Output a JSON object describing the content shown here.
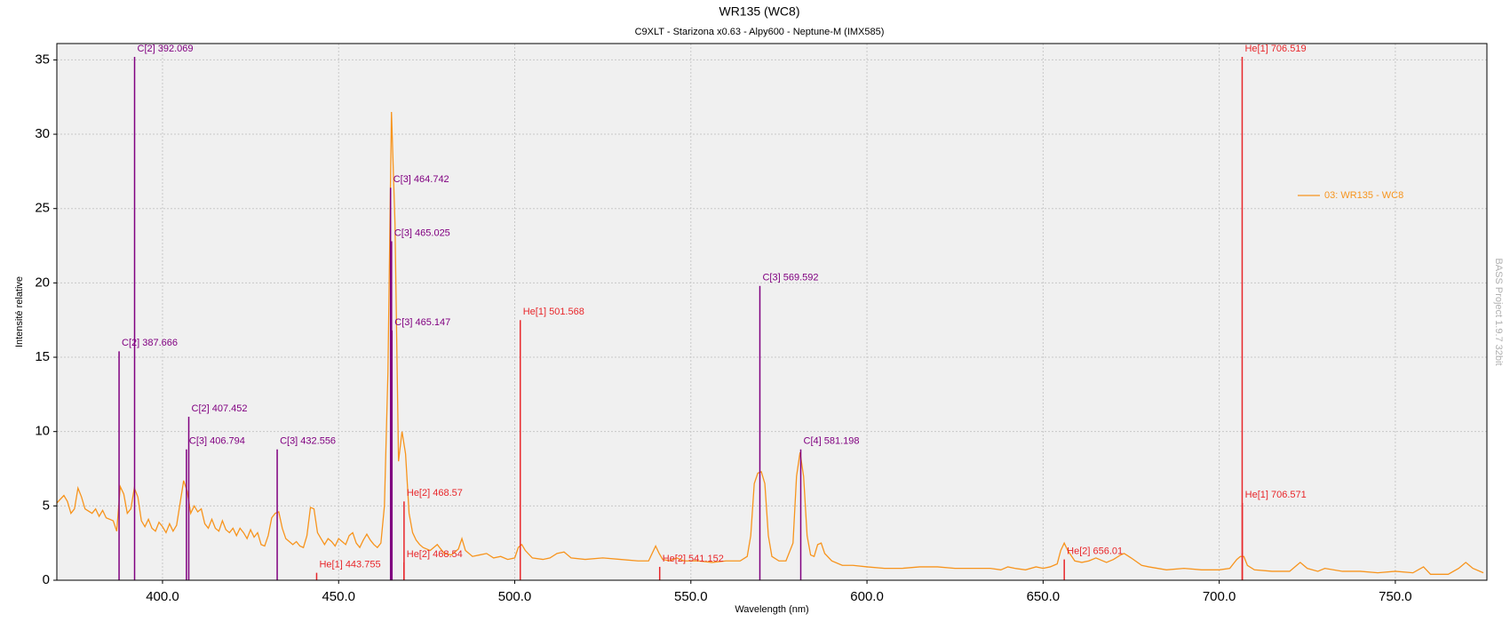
{
  "chart_data": {
    "type": "line",
    "title": "WR135 (WC8)",
    "subtitle": "C9XLT - Starizona x0.63 - Alpy600 - Neptune-M (IMX585)",
    "x_label": "Wavelength (nm)",
    "y_label": "Intensité relative",
    "watermark": "BASS Project 1.9.7  32bit",
    "xlim": [
      370,
      776
    ],
    "ylim": [
      0,
      36.1
    ],
    "xticks": [
      {
        "value": 400,
        "label": "400.0"
      },
      {
        "value": 450,
        "label": "450.0"
      },
      {
        "value": 500,
        "label": "500.0"
      },
      {
        "value": 550,
        "label": "550.0"
      },
      {
        "value": 600,
        "label": "600.0"
      },
      {
        "value": 650,
        "label": "650.0"
      },
      {
        "value": 700,
        "label": "700.0"
      },
      {
        "value": 750,
        "label": "750.0"
      }
    ],
    "yticks": [
      0,
      5,
      10,
      15,
      20,
      25,
      30,
      35
    ],
    "grid": true,
    "legend": "right",
    "series": [
      {
        "name": "03: WR135 - WC8",
        "color": "#f7941d",
        "x": [
          370,
          372,
          373,
          374,
          375,
          376,
          377,
          378,
          380,
          381,
          382,
          383,
          384,
          386,
          387,
          388,
          389,
          390,
          391,
          392,
          393,
          394,
          395,
          396,
          397,
          398,
          399,
          400,
          401,
          402,
          403,
          404,
          405,
          406,
          407,
          408,
          409,
          410,
          411,
          412,
          413,
          414,
          415,
          416,
          417,
          418,
          419,
          420,
          421,
          422,
          423,
          424,
          425,
          426,
          427,
          428,
          429,
          430,
          431,
          432,
          433,
          434,
          435,
          436,
          437,
          438,
          439,
          440,
          441,
          442,
          443,
          444,
          445,
          446,
          447,
          448,
          449,
          450,
          451,
          452,
          453,
          454,
          455,
          456,
          457,
          458,
          459,
          460,
          461,
          462,
          463,
          464,
          465,
          466,
          467,
          468,
          469,
          470,
          471,
          472,
          473,
          474,
          476,
          478,
          480,
          482,
          484,
          485,
          486,
          488,
          490,
          492,
          494,
          496,
          498,
          500,
          501,
          502,
          503,
          505,
          508,
          510,
          512,
          514,
          516,
          520,
          525,
          530,
          535,
          538,
          540,
          541,
          542,
          544,
          546,
          548,
          552,
          556,
          560,
          564,
          566,
          567,
          568,
          569,
          570,
          571,
          572,
          573,
          575,
          577,
          579,
          580,
          581,
          582,
          583,
          584,
          585,
          586,
          587,
          588,
          590,
          593,
          596,
          600,
          605,
          610,
          615,
          620,
          625,
          630,
          635,
          638,
          640,
          642,
          645,
          648,
          650,
          652,
          654,
          655,
          656,
          657,
          659,
          661,
          663,
          665,
          668,
          670,
          672,
          673,
          675,
          678,
          680,
          685,
          690,
          695,
          700,
          703,
          705,
          706,
          707,
          708,
          710,
          715,
          720,
          723,
          725,
          728,
          730,
          735,
          740,
          745,
          750,
          755,
          758,
          760,
          765,
          768,
          770,
          772,
          775
        ],
        "values": [
          5.2,
          5.7,
          5.3,
          4.5,
          4.8,
          6.2,
          5.6,
          4.8,
          4.5,
          4.8,
          4.3,
          4.7,
          4.2,
          4.0,
          3.3,
          6.3,
          5.8,
          4.5,
          4.8,
          6.2,
          5.6,
          4.0,
          3.6,
          4.1,
          3.5,
          3.3,
          3.9,
          3.6,
          3.2,
          3.8,
          3.3,
          3.7,
          5.2,
          6.7,
          6.0,
          4.5,
          5.0,
          4.6,
          4.8,
          3.8,
          3.5,
          4.1,
          3.5,
          3.3,
          4.0,
          3.4,
          3.2,
          3.5,
          3.0,
          3.5,
          3.2,
          2.8,
          3.4,
          2.9,
          3.2,
          2.4,
          2.3,
          3.0,
          4.2,
          4.5,
          4.6,
          3.5,
          2.8,
          2.6,
          2.4,
          2.6,
          2.3,
          2.2,
          3.0,
          4.9,
          4.8,
          3.2,
          2.8,
          2.4,
          2.8,
          2.6,
          2.3,
          2.8,
          2.6,
          2.4,
          3.0,
          3.2,
          2.5,
          2.2,
          2.7,
          3.1,
          2.7,
          2.4,
          2.2,
          2.5,
          5.0,
          14.0,
          31.5,
          24.0,
          8.0,
          10.0,
          8.5,
          4.5,
          3.2,
          2.7,
          2.4,
          2.2,
          2.0,
          2.4,
          1.8,
          1.7,
          2.1,
          2.8,
          2.0,
          1.6,
          1.7,
          1.8,
          1.5,
          1.6,
          1.4,
          1.5,
          2.2,
          2.4,
          2.0,
          1.5,
          1.4,
          1.5,
          1.8,
          1.9,
          1.5,
          1.4,
          1.5,
          1.4,
          1.3,
          1.3,
          2.3,
          1.8,
          1.4,
          1.3,
          1.5,
          1.3,
          1.3,
          1.2,
          1.3,
          1.3,
          1.6,
          3.0,
          6.5,
          7.2,
          7.3,
          6.5,
          3.0,
          1.6,
          1.3,
          1.3,
          2.5,
          7.0,
          8.6,
          7.0,
          3.0,
          1.7,
          1.6,
          2.4,
          2.5,
          1.8,
          1.3,
          1.0,
          1.0,
          0.9,
          0.8,
          0.8,
          0.9,
          0.9,
          0.8,
          0.8,
          0.8,
          0.7,
          0.9,
          0.8,
          0.7,
          0.9,
          0.8,
          0.9,
          1.1,
          2.0,
          2.5,
          2.0,
          1.3,
          1.2,
          1.3,
          1.5,
          1.2,
          1.4,
          1.7,
          1.8,
          1.5,
          1.0,
          0.9,
          0.7,
          0.8,
          0.7,
          0.7,
          0.8,
          1.4,
          1.6,
          1.6,
          1.0,
          0.7,
          0.6,
          0.6,
          1.2,
          0.8,
          0.6,
          0.8,
          0.6,
          0.6,
          0.5,
          0.6,
          0.5,
          0.9,
          0.4,
          0.4,
          0.8,
          1.2,
          0.8,
          0.5
        ]
      }
    ],
    "lines": [
      {
        "label": "C[2] 387.666",
        "x": 387.666,
        "value": 15.4,
        "color": "#800080"
      },
      {
        "label": "C[2] 392.069",
        "x": 392.069,
        "value": 35.2,
        "color": "#800080"
      },
      {
        "label": "C[3] 406.794",
        "x": 406.794,
        "value": 8.8,
        "color": "#800080"
      },
      {
        "label": "C[2] 407.452",
        "x": 407.452,
        "value": 11.0,
        "color": "#800080"
      },
      {
        "label": "C[3] 432.556",
        "x": 432.556,
        "value": 8.8,
        "color": "#800080"
      },
      {
        "label": "He[1] 443.755",
        "x": 443.755,
        "value": 0.5,
        "color": "#e8262a"
      },
      {
        "label": "C[3] 464.742",
        "x": 464.742,
        "value": 26.4,
        "color": "#800080"
      },
      {
        "label": "C[3] 465.025",
        "x": 465.025,
        "value": 22.8,
        "color": "#800080"
      },
      {
        "label": "C[3] 465.147",
        "x": 465.147,
        "value": 16.8,
        "color": "#800080"
      },
      {
        "label": "He[2] 468.57",
        "x": 468.57,
        "value": 5.3,
        "color": "#e8262a"
      },
      {
        "label": "He[2] 468.54",
        "x": 468.54,
        "value": 1.2,
        "color": "#e8262a"
      },
      {
        "label": "He[1] 501.568",
        "x": 501.568,
        "value": 17.5,
        "color": "#e8262a"
      },
      {
        "label": "He[2] 541.152",
        "x": 541.152,
        "value": 0.9,
        "color": "#e8262a"
      },
      {
        "label": "C[3] 569.592",
        "x": 569.592,
        "value": 19.8,
        "color": "#800080"
      },
      {
        "label": "C[4] 581.198",
        "x": 581.198,
        "value": 8.8,
        "color": "#800080"
      },
      {
        "label": "He[2] 656.01",
        "x": 656.01,
        "value": 1.4,
        "color": "#e8262a"
      },
      {
        "label": "He[1] 706.519",
        "x": 706.519,
        "value": 35.2,
        "color": "#e8262a"
      },
      {
        "label": "He[1] 706.571",
        "x": 706.571,
        "value": 5.2,
        "color": "#e8262a"
      }
    ]
  }
}
